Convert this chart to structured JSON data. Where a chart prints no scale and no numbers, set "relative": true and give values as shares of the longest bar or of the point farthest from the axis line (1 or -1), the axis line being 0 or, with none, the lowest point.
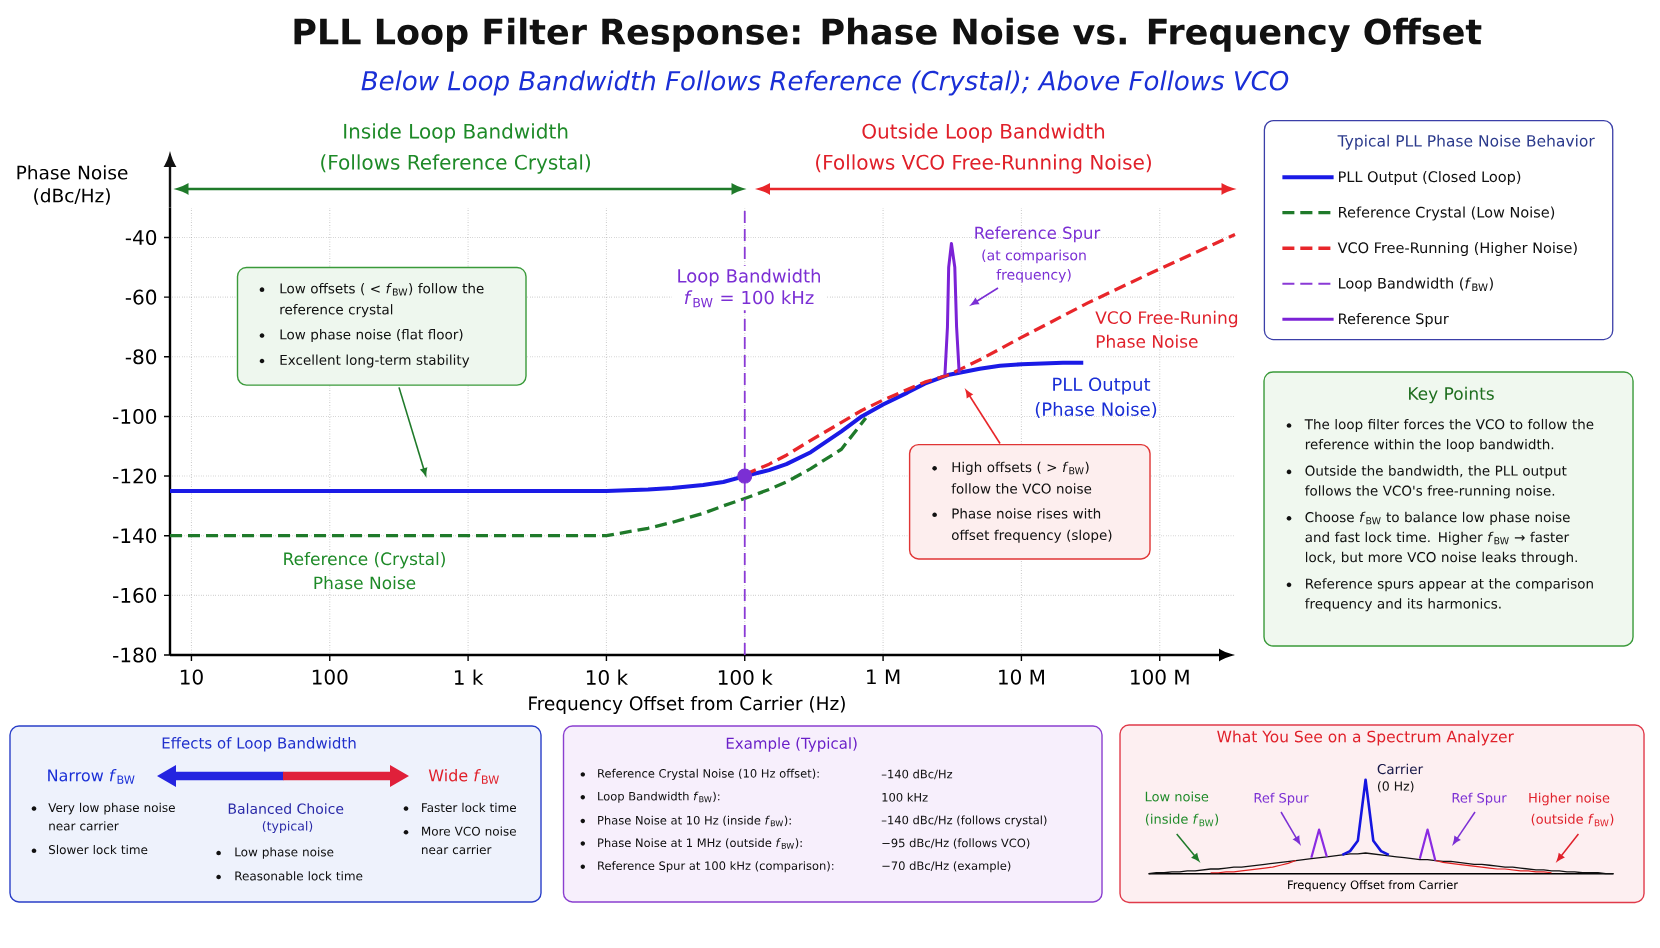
{
  "chart_data": [
    {
      "type": "line",
      "title": "PLL Loop Filter Response: Phase Noise vs. Frequency Offset",
      "subtitle": "Below Loop Bandwidth Follows Reference (Crystal); Above Follows VCO",
      "xlabel": "Frequency Offset from Carrier (Hz)",
      "ylabel": "Phase Noise (dBc/Hz)",
      "legend_title": "Typical PLL Phase Noise Behavior",
      "legend": "top right",
      "log": "x",
      "grid": true,
      "xlim": [
        7,
        350000000
      ],
      "ylim": [
        -180,
        -30
      ],
      "xticks": [
        10,
        100,
        {
          "value": 1000,
          "label": "1 k"
        },
        {
          "value": 10000,
          "label": "10 k"
        },
        {
          "value": 100000,
          "label": "100 k"
        },
        {
          "value": 1000000,
          "label": "1 M"
        },
        {
          "value": 10000000,
          "label": "10 M"
        },
        {
          "value": 100000000,
          "label": "100 M"
        }
      ],
      "yticks": [
        -40,
        -60,
        -80,
        -100,
        -120,
        -140,
        -160,
        -180
      ],
      "series": [
        {
          "name": "PLL Output (Closed Loop)",
          "color": "#1a1ae6",
          "line_style": "solid",
          "x": [
            7,
            10,
            100,
            1000,
            10000,
            20000,
            30000,
            50000,
            70000,
            100000,
            150000,
            200000,
            300000,
            500000,
            700000,
            1000000,
            1500000,
            2000000,
            3000000,
            5000000,
            7000000,
            10000000,
            20000000,
            28000000
          ],
          "values": [
            -125,
            -125,
            -125,
            -125,
            -125,
            -124.5,
            -124,
            -123,
            -122,
            -120,
            -118,
            -116,
            -112,
            -105,
            -100,
            -96,
            -92,
            -89,
            -86,
            -84,
            -83,
            -82.5,
            -82,
            -82
          ]
        },
        {
          "name": "Reference Crystal (Low Noise)",
          "color": "#1f7a2a",
          "line_style": "dashed",
          "x": [
            7,
            10,
            100,
            1000,
            10000,
            20000,
            30000,
            50000,
            70000,
            100000,
            150000,
            200000,
            300000,
            500000,
            750000
          ],
          "values": [
            -140,
            -140,
            -140,
            -140,
            -140,
            -137.5,
            -135.5,
            -132.5,
            -130,
            -127.5,
            -124.5,
            -122,
            -117.5,
            -111,
            -100.5
          ]
        },
        {
          "name": "VCO Free-Running (Higher Noise)",
          "color": "#e8262a",
          "line_style": "dashed",
          "x": [
            100000,
            150000,
            200000,
            300000,
            500000,
            700000,
            1000000,
            2000000,
            3000000,
            5000000,
            10000000,
            30000000,
            100000000,
            350000000
          ],
          "values": [
            -119.5,
            -116,
            -113,
            -108,
            -102,
            -98,
            -94.5,
            -88.5,
            -86,
            -81,
            -73.5,
            -62,
            -50.5,
            -39
          ]
        },
        {
          "name": "Loop Bandwidth (*f*$_{BW}$)",
          "color": "#8a3ad6",
          "line_style": "dashed",
          "x": [
            100000,
            100000
          ],
          "values": [
            -180,
            -30
          ]
        },
        {
          "name": "Reference Spur",
          "color": "#7b22d6",
          "line_style": "solid",
          "x": [
            2800000,
            2920000,
            2980000,
            3120000,
            3300000,
            3400000,
            3550000
          ],
          "values": [
            -86,
            -70,
            -50,
            -42,
            -50,
            -70,
            -85.5
          ]
        },
        {
          "type": "scatter",
          "color": "#7b2fd4",
          "marker": "circle",
          "x": [
            100000
          ],
          "values": [
            -120
          ]
        }
      ],
      "annotations": [
        "Inside Loop Bandwidth",
        "(Follows Reference Crystal)",
        "Outside Loop Bandwidth",
        "(Follows VCO Free-Running Noise)",
        "Reference Spur",
        "(at comparison",
        "frequency)",
        "VCO Free-Runing",
        "Phase Noise",
        "PLL Output",
        "(Phase Noise)",
        "Reference (Crystal)",
        "Phase Noise",
        "Low offsets ( < *f*$_{BW}$) follow the reference crystal",
        "Low phase noise (flat floor)",
        "Excellent long-term stability",
        "High offsets ( > *f*$_{BW}$) follow the VCO noise",
        "Phase noise rises with offset frequency (slope)",
        "Loop Bandwidth *f*$_{BW}$ = 100 kHz"
      ]
    },
    {
      "type": "other",
      "title": "Key Points",
      "annotations": [
        "The loop filter forces the VCO to follow the reference within the loop bandwidth.",
        "Outside the bandwidth, the PLL output follows the VCO's free-running noise.",
        "Choose *f*$_{BW}$ to balance low phase noise and fast lock time. Higher *f*$_{BW}$ → faster lock, but more VCO noise leaks through.",
        "Reference spurs appear at the comparison frequency and its harmonics."
      ]
    },
    {
      "type": "other",
      "title": "Effects of Loop Bandwidth",
      "annotations": [
        "Narrow *f*$_{BW}$",
        "Wide *f*$_{BW}$",
        "Balanced Choice",
        "(typical)",
        "Very low phase noise near carrier",
        "Slower lock time",
        "Low phase noise",
        "Reasonable lock time",
        "Faster lock time",
        "More VCO noise near carrier"
      ]
    },
    {
      "type": "other",
      "title": "Example (Typical)",
      "annotations": [
        "Reference Crystal Noise (10 Hz offset):",
        "–140 dBc/Hz",
        "Loop Bandwidth *f*$_{BW}$):",
        "100 kHz",
        "Phase Noise at 10 Hz (inside *f*$_{BW}$):",
        "–140 dBc/Hz (follows crystal)",
        "Phase Noise at 1 MHz (outside *f*$_{BW}$):",
        "−95 dBc/Hz (follows VCO)",
        "Reference Spur at 100 kHz (comparison):",
        "−70 dBc/Hz (example)"
      ]
    },
    {
      "type": "line",
      "relative": true,
      "title": "What You See on a Spectrum Analyzer",
      "xlabel": "Frequency Offset from Carrier",
      "categories": [
        null,
        null,
        null,
        null,
        null,
        null,
        null,
        null,
        null,
        null,
        null,
        null,
        null,
        null,
        null,
        null,
        null,
        null,
        null,
        null,
        null,
        null,
        null,
        null,
        null,
        null,
        null,
        null,
        null,
        null,
        null,
        null,
        null,
        null,
        null,
        null,
        null,
        null,
        null,
        null,
        null,
        null,
        null,
        null,
        null,
        null,
        null,
        null,
        null,
        null,
        null,
        null,
        null,
        null,
        null,
        null,
        null,
        null,
        null,
        null,
        null
      ],
      "series": [
        {
          "color": "#111111",
          "values": [
            0,
            0.01,
            0.01,
            0.02,
            0.02,
            0.03,
            0.03,
            0.04,
            0.05,
            0.05,
            0.06,
            0.07,
            0.07,
            0.08,
            0.09,
            0.1,
            0.11,
            0.12,
            0.13,
            0.14,
            0.15,
            0.16,
            0.17,
            0.18,
            0.19,
            0.2,
            0.21,
            0.21,
            0.22,
            0.21,
            0.2,
            0.19,
            0.18,
            0.17,
            0.16,
            0.15,
            0.15,
            0.14,
            0.13,
            0.13,
            0.12,
            0.11,
            0.1,
            0.1,
            0.09,
            0.08,
            0.07,
            0.07,
            0.06,
            0.05,
            0.04,
            0.04,
            0.03,
            0.03,
            0.02,
            0.02,
            0.01,
            0.01,
            0.01,
            0,
            0
          ]
        },
        {
          "color": "#e02020",
          "values": [
            null,
            null,
            null,
            null,
            null,
            null,
            null,
            null,
            0.01,
            0.01,
            0.02,
            0.02,
            0.03,
            0.04,
            0.05,
            0.06,
            0.07,
            0.09,
            0.11,
            0.14,
            null,
            null,
            null,
            null,
            null,
            null,
            null,
            null,
            null,
            null,
            null,
            null,
            null,
            null,
            null,
            null,
            null,
            0.14,
            0.12,
            0.11,
            0.1,
            0.09,
            0.08,
            0.07,
            0.06,
            0.05,
            0.05,
            0.04,
            0.03,
            0.03,
            0.02,
            0.02,
            0.01,
            null,
            null,
            null,
            null,
            null,
            null,
            null,
            null
          ]
        },
        {
          "color": "#1515e0",
          "values": [
            null,
            null,
            null,
            null,
            null,
            null,
            null,
            null,
            null,
            null,
            null,
            null,
            null,
            null,
            null,
            null,
            null,
            null,
            null,
            null,
            null,
            null,
            null,
            null,
            null,
            0.2,
            0.24,
            0.35,
            1,
            0.35,
            0.24,
            0.2,
            null,
            null,
            null,
            null,
            null,
            null,
            null,
            null,
            null,
            null,
            null,
            null,
            null,
            null,
            null,
            null,
            null,
            null,
            null,
            null,
            null,
            null,
            null,
            null,
            null,
            null,
            null,
            null,
            null
          ]
        },
        {
          "color": "#8a2be2",
          "values": [
            null,
            null,
            null,
            null,
            null,
            null,
            null,
            null,
            null,
            null,
            null,
            null,
            null,
            null,
            null,
            null,
            null,
            null,
            null,
            null,
            null,
            0.17,
            0.47,
            0.18,
            null,
            null,
            null,
            null,
            null,
            null,
            null,
            null,
            null,
            null,
            null,
            0.16,
            0.47,
            0.14,
            null,
            null,
            null,
            null,
            null,
            null,
            null,
            null,
            null,
            null,
            null,
            null,
            null,
            null,
            null,
            null,
            null,
            null,
            null,
            null,
            null,
            null,
            null
          ]
        }
      ],
      "annotations": [
        "Carrier",
        "(0 Hz)",
        "Low noise",
        "(inside *f*$_{BW}$)",
        "Ref Spur",
        "Ref Spur",
        "Higher noise",
        "(outside *f*$_{BW}$)"
      ]
    }
  ]
}
